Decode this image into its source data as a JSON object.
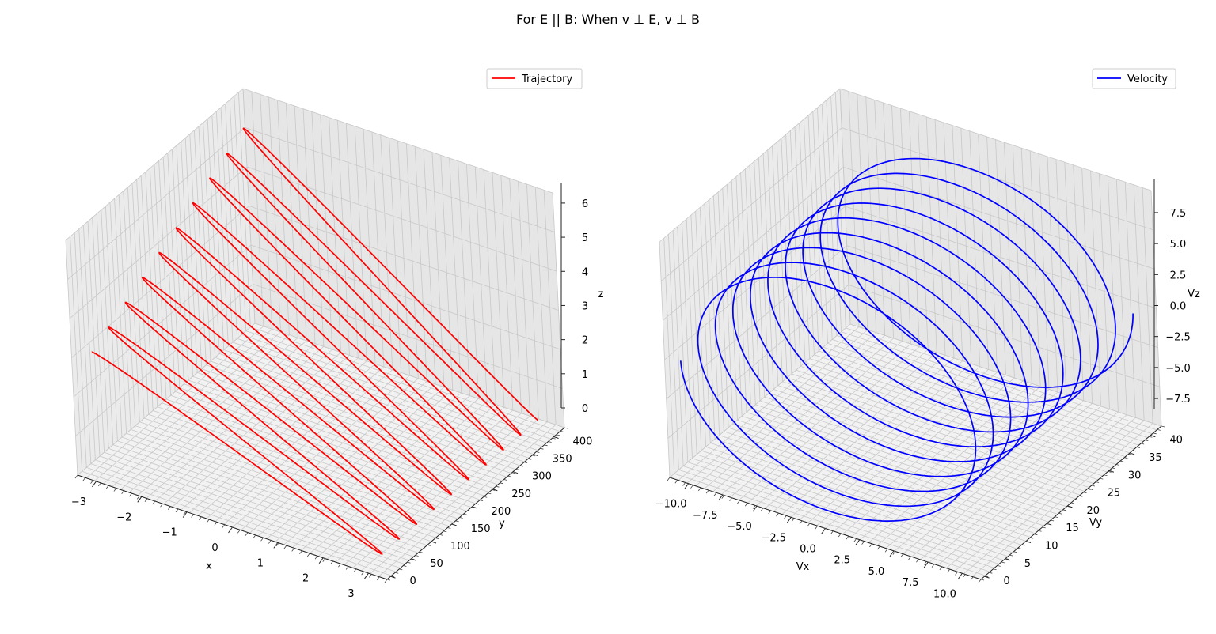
{
  "figure_title": "For E || B: When v ⊥ E, v ⊥ B",
  "chart_data": [
    {
      "type": "line",
      "projection": "3d",
      "legend": [
        "Trajectory"
      ],
      "legend_placement": "top-right",
      "grid": true,
      "series": [
        {
          "name": "Trajectory",
          "color": "#ff0000",
          "shape": "helix",
          "radius": 3.2,
          "turns": 9.5,
          "y_range": [
            0,
            400
          ],
          "z_range": [
            0,
            6.4
          ]
        }
      ],
      "xlabel": "x",
      "ylabel": "y",
      "zlabel": "z",
      "xlim": [
        -3.6,
        3.6
      ],
      "ylim": [
        0,
        420
      ],
      "zlim": [
        0,
        6.6
      ],
      "xticks": [
        "−3",
        "−2",
        "−1",
        "0",
        "1",
        "2",
        "3"
      ],
      "yticks": [
        "0",
        "50",
        "100",
        "150",
        "200",
        "250",
        "300",
        "350",
        "400"
      ],
      "zticks": [
        "0",
        "1",
        "2",
        "3",
        "4",
        "5",
        "6"
      ]
    },
    {
      "type": "line",
      "projection": "3d",
      "legend": [
        "Velocity"
      ],
      "legend_placement": "top-right",
      "grid": true,
      "series": [
        {
          "name": "Velocity",
          "color": "#0000ff",
          "shape": "helix",
          "radius": 10,
          "turns": 9.5,
          "y_range": [
            0,
            40
          ]
        }
      ],
      "xlabel": "Vx",
      "ylabel": "Vy",
      "zlabel": "Vz",
      "xlim": [
        -11,
        11
      ],
      "ylim": [
        0,
        42
      ],
      "zlim": [
        -10,
        10
      ],
      "xticks": [
        "−10.0",
        "−7.5",
        "−5.0",
        "−2.5",
        "0.0",
        "2.5",
        "5.0",
        "7.5",
        "10.0"
      ],
      "yticks": [
        "0",
        "5",
        "10",
        "15",
        "20",
        "25",
        "30",
        "35",
        "40"
      ],
      "zticks": [
        "−7.5",
        "−5.0",
        "−2.5",
        "0.0",
        "2.5",
        "5.0",
        "7.5"
      ]
    }
  ]
}
